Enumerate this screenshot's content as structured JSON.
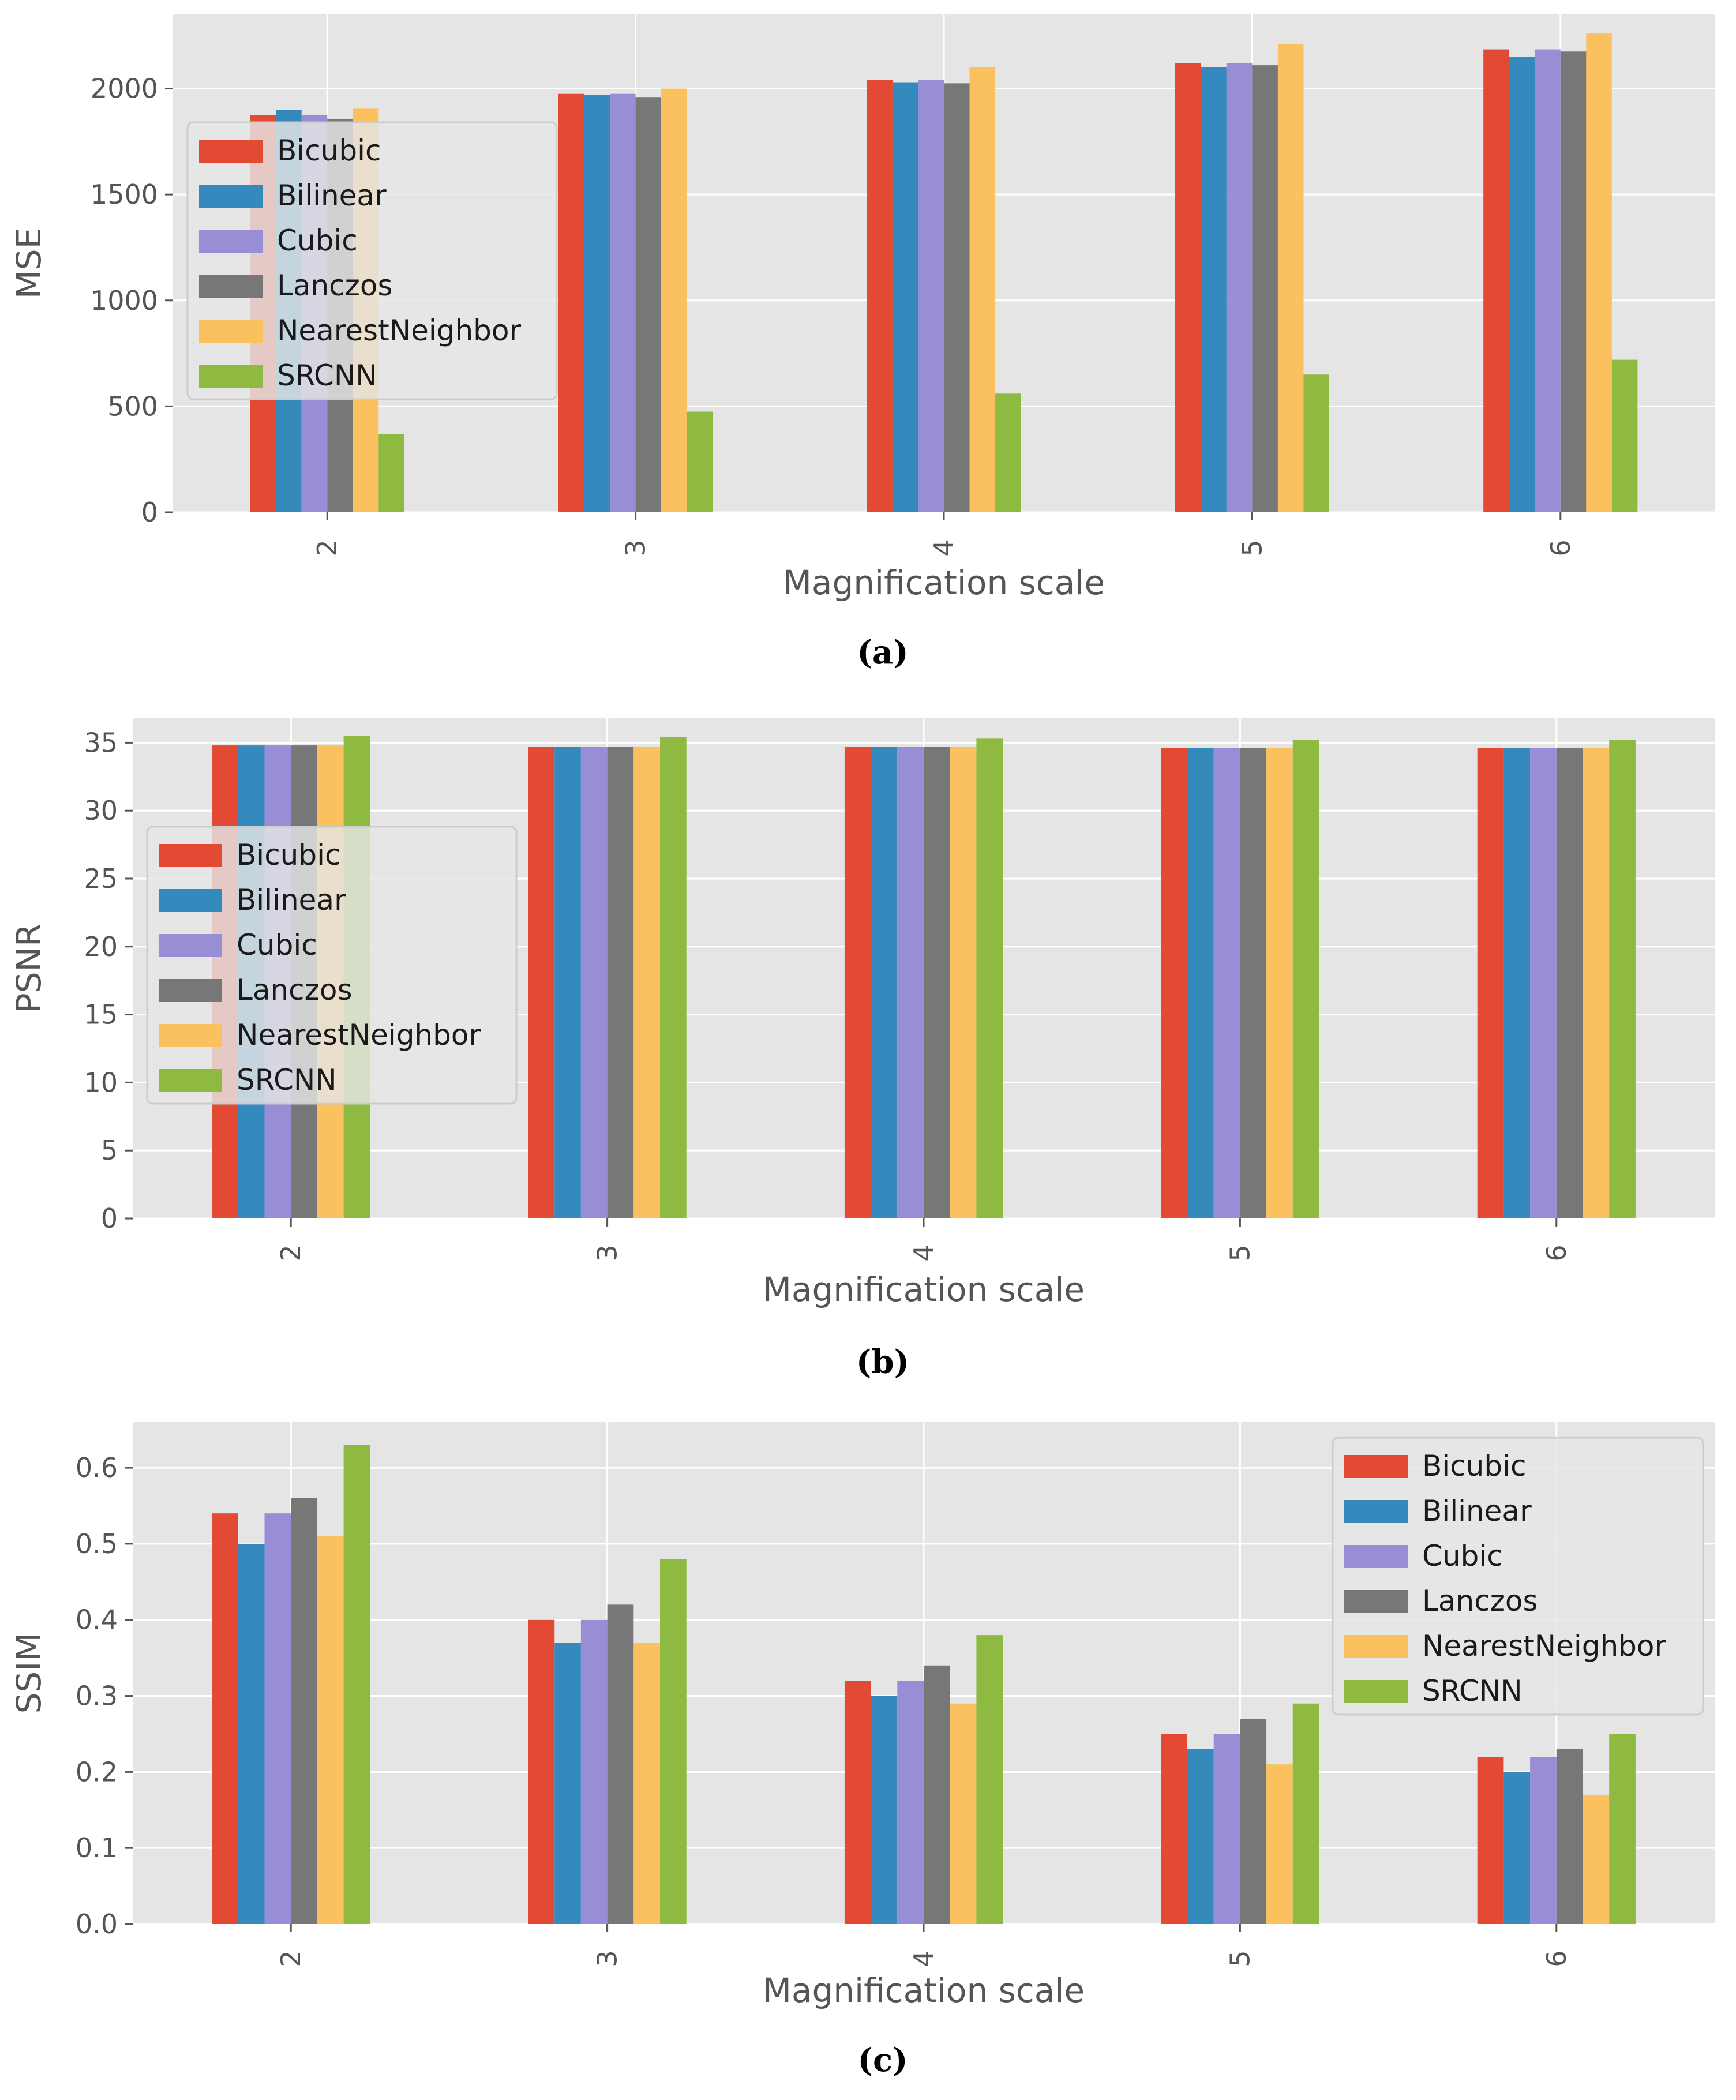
{
  "colors": {
    "Bicubic": "#E24A33",
    "Bilinear": "#348ABD",
    "Cubic": "#988ED5",
    "Lanczos": "#777777",
    "NearestNeighbor": "#FBC15E",
    "SRCNN": "#8EBA42",
    "background": "#E5E5E5",
    "grid": "#FFFFFF",
    "text": "#555555"
  },
  "chart_data": [
    {
      "type": "bar",
      "caption": "(a)",
      "title": "",
      "xlabel": "Magnification scale",
      "ylabel": "MSE",
      "categories": [
        "2",
        "3",
        "4",
        "5",
        "6"
      ],
      "ylim": [
        0,
        2350
      ],
      "yticks": [
        "0",
        "500",
        "1000",
        "1500",
        "2000"
      ],
      "legend_position": "upper-left",
      "series": [
        {
          "name": "Bicubic",
          "values": [
            1875,
            1975,
            2040,
            2120,
            2185
          ]
        },
        {
          "name": "Bilinear",
          "values": [
            1900,
            1970,
            2030,
            2100,
            2150
          ]
        },
        {
          "name": "Cubic",
          "values": [
            1875,
            1975,
            2040,
            2120,
            2185
          ]
        },
        {
          "name": "Lanczos",
          "values": [
            1855,
            1960,
            2025,
            2110,
            2175
          ]
        },
        {
          "name": "NearestNeighbor",
          "values": [
            1905,
            2000,
            2100,
            2210,
            2260
          ]
        },
        {
          "name": "SRCNN",
          "values": [
            370,
            475,
            560,
            650,
            720
          ]
        }
      ]
    },
    {
      "type": "bar",
      "caption": "(b)",
      "title": "",
      "xlabel": "Magnification scale",
      "ylabel": "PSNR",
      "categories": [
        "2",
        "3",
        "4",
        "5",
        "6"
      ],
      "ylim": [
        0,
        36.8
      ],
      "yticks": [
        "0",
        "5",
        "10",
        "15",
        "20",
        "25",
        "30",
        "35"
      ],
      "legend_position": "center-left",
      "series": [
        {
          "name": "Bicubic",
          "values": [
            34.8,
            34.7,
            34.7,
            34.6,
            34.6
          ]
        },
        {
          "name": "Bilinear",
          "values": [
            34.8,
            34.7,
            34.7,
            34.6,
            34.6
          ]
        },
        {
          "name": "Cubic",
          "values": [
            34.8,
            34.7,
            34.7,
            34.6,
            34.6
          ]
        },
        {
          "name": "Lanczos",
          "values": [
            34.8,
            34.7,
            34.7,
            34.6,
            34.6
          ]
        },
        {
          "name": "NearestNeighbor",
          "values": [
            34.8,
            34.7,
            34.7,
            34.6,
            34.6
          ]
        },
        {
          "name": "SRCNN",
          "values": [
            35.5,
            35.4,
            35.3,
            35.2,
            35.2
          ]
        }
      ]
    },
    {
      "type": "bar",
      "caption": "(c)",
      "title": "",
      "xlabel": "Magnification scale",
      "ylabel": "SSIM",
      "categories": [
        "2",
        "3",
        "4",
        "5",
        "6"
      ],
      "ylim": [
        0,
        0.66
      ],
      "yticks": [
        "0.0",
        "0.1",
        "0.2",
        "0.3",
        "0.4",
        "0.5",
        "0.6"
      ],
      "legend_position": "upper-right",
      "series": [
        {
          "name": "Bicubic",
          "values": [
            0.54,
            0.4,
            0.32,
            0.25,
            0.22
          ]
        },
        {
          "name": "Bilinear",
          "values": [
            0.5,
            0.37,
            0.3,
            0.23,
            0.2
          ]
        },
        {
          "name": "Cubic",
          "values": [
            0.54,
            0.4,
            0.32,
            0.25,
            0.22
          ]
        },
        {
          "name": "Lanczos",
          "values": [
            0.56,
            0.42,
            0.34,
            0.27,
            0.23
          ]
        },
        {
          "name": "NearestNeighbor",
          "values": [
            0.51,
            0.37,
            0.29,
            0.21,
            0.17
          ]
        },
        {
          "name": "SRCNN",
          "values": [
            0.63,
            0.48,
            0.38,
            0.29,
            0.25
          ]
        }
      ]
    }
  ]
}
